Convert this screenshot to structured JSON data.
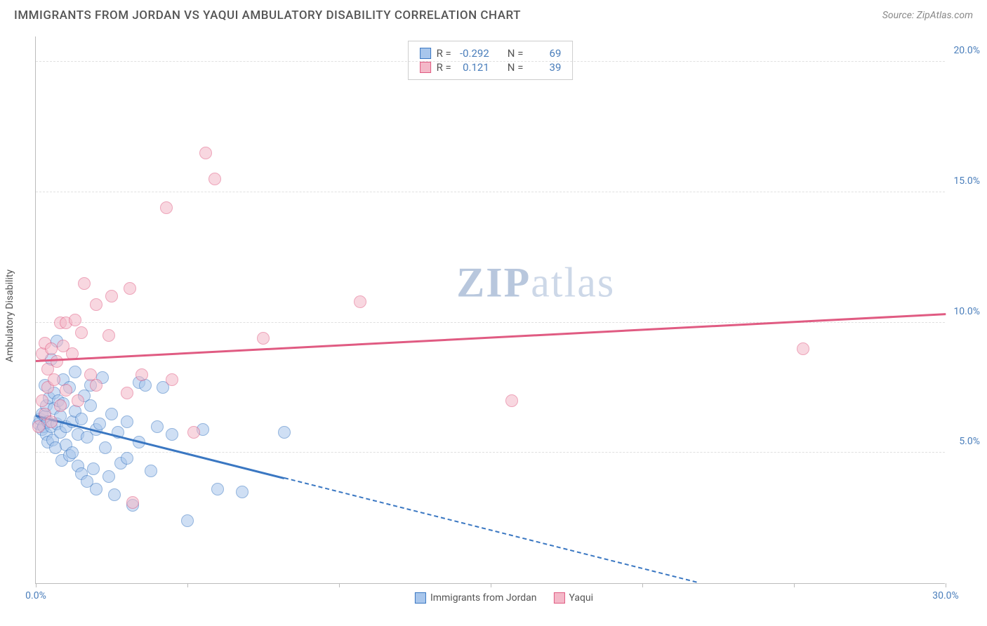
{
  "header": {
    "title": "IMMIGRANTS FROM JORDAN VS YAQUI AMBULATORY DISABILITY CORRELATION CHART",
    "source_prefix": "Source: ",
    "source_name": "ZipAtlas.com"
  },
  "watermark": {
    "bold": "ZIP",
    "rest": "atlas"
  },
  "chart": {
    "type": "scatter",
    "y_label": "Ambulatory Disability",
    "background_color": "#ffffff",
    "grid_color": "#e0e0e0",
    "axis_color": "#bbbbbb",
    "tick_label_color": "#4a7ebb",
    "xlim": [
      0,
      30
    ],
    "ylim": [
      0,
      21
    ],
    "x_ticks": [
      0,
      5,
      10,
      15,
      20,
      25,
      30
    ],
    "x_tick_labels": {
      "0": "0.0%",
      "30": "30.0%"
    },
    "y_ticks": [
      5,
      10,
      15,
      20
    ],
    "y_tick_labels": {
      "5": "5.0%",
      "10": "10.0%",
      "15": "15.0%",
      "20": "20.0%"
    },
    "marker_radius": 9,
    "marker_opacity": 0.55,
    "series": [
      {
        "name": "Immigrants from Jordan",
        "fill": "#a8c6ec",
        "stroke": "#3a77c2",
        "r_value": "-0.292",
        "n_value": "69",
        "trend": {
          "x1": 0,
          "y1": 6.4,
          "x2": 8.2,
          "y2": 4.0,
          "dash_x2": 21.8,
          "dash_y2": 0.0
        },
        "points": [
          [
            0.1,
            6.1
          ],
          [
            0.15,
            6.3
          ],
          [
            0.2,
            5.9
          ],
          [
            0.2,
            6.5
          ],
          [
            0.25,
            6.0
          ],
          [
            0.3,
            6.4
          ],
          [
            0.3,
            7.6
          ],
          [
            0.35,
            5.7
          ],
          [
            0.35,
            6.8
          ],
          [
            0.4,
            6.2
          ],
          [
            0.4,
            5.4
          ],
          [
            0.45,
            7.1
          ],
          [
            0.5,
            6.0
          ],
          [
            0.5,
            8.6
          ],
          [
            0.55,
            5.5
          ],
          [
            0.6,
            7.3
          ],
          [
            0.6,
            6.7
          ],
          [
            0.65,
            5.2
          ],
          [
            0.7,
            6.1
          ],
          [
            0.7,
            9.3
          ],
          [
            0.75,
            7.0
          ],
          [
            0.8,
            5.8
          ],
          [
            0.8,
            6.4
          ],
          [
            0.85,
            4.7
          ],
          [
            0.9,
            6.9
          ],
          [
            0.9,
            7.8
          ],
          [
            1.0,
            5.3
          ],
          [
            1.0,
            6.0
          ],
          [
            1.1,
            4.9
          ],
          [
            1.1,
            7.5
          ],
          [
            1.2,
            6.2
          ],
          [
            1.2,
            5.0
          ],
          [
            1.3,
            6.6
          ],
          [
            1.3,
            8.1
          ],
          [
            1.4,
            4.5
          ],
          [
            1.4,
            5.7
          ],
          [
            1.5,
            6.3
          ],
          [
            1.5,
            4.2
          ],
          [
            1.6,
            7.2
          ],
          [
            1.7,
            5.6
          ],
          [
            1.7,
            3.9
          ],
          [
            1.8,
            6.8
          ],
          [
            1.8,
            7.6
          ],
          [
            1.9,
            4.4
          ],
          [
            2.0,
            5.9
          ],
          [
            2.0,
            3.6
          ],
          [
            2.1,
            6.1
          ],
          [
            2.2,
            7.9
          ],
          [
            2.3,
            5.2
          ],
          [
            2.4,
            4.1
          ],
          [
            2.5,
            6.5
          ],
          [
            2.6,
            3.4
          ],
          [
            2.7,
            5.8
          ],
          [
            2.8,
            4.6
          ],
          [
            3.0,
            6.2
          ],
          [
            3.0,
            4.8
          ],
          [
            3.2,
            3.0
          ],
          [
            3.4,
            7.7
          ],
          [
            3.4,
            5.4
          ],
          [
            3.6,
            7.6
          ],
          [
            3.8,
            4.3
          ],
          [
            4.0,
            6.0
          ],
          [
            4.2,
            7.5
          ],
          [
            4.5,
            5.7
          ],
          [
            5.0,
            2.4
          ],
          [
            5.5,
            5.9
          ],
          [
            6.0,
            3.6
          ],
          [
            6.8,
            3.5
          ],
          [
            8.2,
            5.8
          ]
        ]
      },
      {
        "name": "Yaqui",
        "fill": "#f4b8c8",
        "stroke": "#e05b82",
        "r_value": "0.121",
        "n_value": "39",
        "trend": {
          "x1": 0,
          "y1": 8.5,
          "x2": 30,
          "y2": 10.3
        },
        "points": [
          [
            0.1,
            6.0
          ],
          [
            0.2,
            7.0
          ],
          [
            0.2,
            8.8
          ],
          [
            0.3,
            6.5
          ],
          [
            0.3,
            9.2
          ],
          [
            0.4,
            7.5
          ],
          [
            0.4,
            8.2
          ],
          [
            0.5,
            6.2
          ],
          [
            0.5,
            9.0
          ],
          [
            0.6,
            7.8
          ],
          [
            0.7,
            8.5
          ],
          [
            0.8,
            10.0
          ],
          [
            0.8,
            6.8
          ],
          [
            0.9,
            9.1
          ],
          [
            1.0,
            10.0
          ],
          [
            1.0,
            7.4
          ],
          [
            1.2,
            8.8
          ],
          [
            1.3,
            10.1
          ],
          [
            1.4,
            7.0
          ],
          [
            1.5,
            9.6
          ],
          [
            1.6,
            11.5
          ],
          [
            1.8,
            8.0
          ],
          [
            2.0,
            10.7
          ],
          [
            2.0,
            7.6
          ],
          [
            2.4,
            9.5
          ],
          [
            2.5,
            11.0
          ],
          [
            3.0,
            7.3
          ],
          [
            3.1,
            11.3
          ],
          [
            3.2,
            3.1
          ],
          [
            3.5,
            8.0
          ],
          [
            4.3,
            14.4
          ],
          [
            4.5,
            7.8
          ],
          [
            5.2,
            5.8
          ],
          [
            5.6,
            16.5
          ],
          [
            5.9,
            15.5
          ],
          [
            7.5,
            9.4
          ],
          [
            10.7,
            10.8
          ],
          [
            15.7,
            7.0
          ],
          [
            25.3,
            9.0
          ]
        ]
      }
    ],
    "stats_box": {
      "r_label": "R =",
      "n_label": "N ="
    },
    "bottom_legend_labels": [
      "Immigrants from Jordan",
      "Yaqui"
    ]
  }
}
